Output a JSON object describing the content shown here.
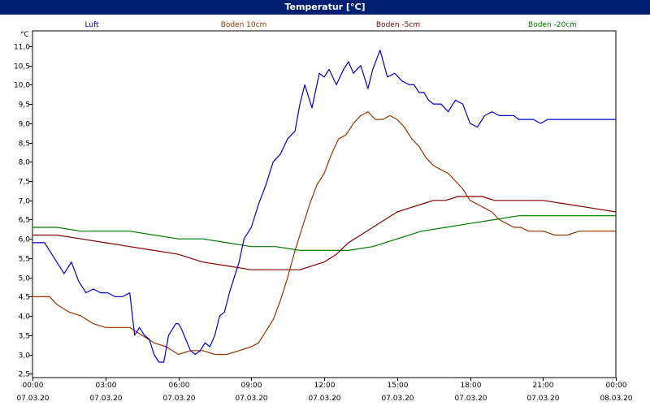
{
  "title": "Temperatur [°C]",
  "chart_data": {
    "type": "line",
    "title": "Temperatur [°C]",
    "ylabel": "°C",
    "xlabel": "",
    "ylim": [
      2.4,
      11.4
    ],
    "xlim": [
      0,
      24
    ],
    "grid": true,
    "legend_position": "top",
    "x_tick_labels": [
      {
        "x": 0,
        "time": "00:00",
        "date": "07.03.20"
      },
      {
        "x": 3,
        "time": "03:00",
        "date": "07.03.20"
      },
      {
        "x": 6,
        "time": "06:00",
        "date": "07.03.20"
      },
      {
        "x": 9,
        "time": "09:00",
        "date": "07.03.20"
      },
      {
        "x": 12,
        "time": "12:00",
        "date": "07.03.20"
      },
      {
        "x": 15,
        "time": "15:00",
        "date": "07.03.20"
      },
      {
        "x": 18,
        "time": "18:00",
        "date": "07.03.20"
      },
      {
        "x": 21,
        "time": "21:00",
        "date": "07.03.20"
      },
      {
        "x": 24,
        "time": "00:00",
        "date": "08.03.20"
      }
    ],
    "y_ticks": [
      "2,5",
      "3,0",
      "3,5",
      "4,0",
      "4,5",
      "5,0",
      "5,5",
      "6,0",
      "6,5",
      "7,0",
      "7,5",
      "8,0",
      "8,5",
      "9,0",
      "9,5",
      "10,0",
      "10,5",
      "11,0"
    ],
    "series": [
      {
        "name": "Luft",
        "color": "#0000cc",
        "x": [
          0,
          0.5,
          0.7,
          1.0,
          1.3,
          1.6,
          1.9,
          2.2,
          2.5,
          2.8,
          3.1,
          3.4,
          3.7,
          4.0,
          4.2,
          4.4,
          4.6,
          4.8,
          5.0,
          5.2,
          5.4,
          5.6,
          5.8,
          5.9,
          6.0,
          6.1,
          6.3,
          6.5,
          6.7,
          6.9,
          7.1,
          7.3,
          7.5,
          7.7,
          7.9,
          8.1,
          8.3,
          8.5,
          8.7,
          9.0,
          9.3,
          9.6,
          9.9,
          10.2,
          10.5,
          10.8,
          11.0,
          11.2,
          11.5,
          11.8,
          12.0,
          12.2,
          12.5,
          12.8,
          13.0,
          13.2,
          13.5,
          13.8,
          14.0,
          14.3,
          14.6,
          14.9,
          15.2,
          15.5,
          15.7,
          15.9,
          16.1,
          16.3,
          16.5,
          16.8,
          17.1,
          17.4,
          17.7,
          18.0,
          18.3,
          18.6,
          18.9,
          19.2,
          19.5,
          19.8,
          20.0,
          20.3,
          20.6,
          20.9,
          21.2,
          21.5,
          21.8,
          22.1,
          22.4,
          22.7,
          23.0,
          23.3,
          23.6,
          24.0
        ],
        "y": [
          5.9,
          5.9,
          5.7,
          5.4,
          5.1,
          5.4,
          4.9,
          4.6,
          4.7,
          4.6,
          4.6,
          4.5,
          4.5,
          4.6,
          3.5,
          3.7,
          3.5,
          3.4,
          3.0,
          2.8,
          2.8,
          3.5,
          3.7,
          3.8,
          3.8,
          3.7,
          3.4,
          3.1,
          3.0,
          3.1,
          3.3,
          3.2,
          3.5,
          4.0,
          4.1,
          4.6,
          5.0,
          5.4,
          6.0,
          6.3,
          6.9,
          7.4,
          8.0,
          8.2,
          8.6,
          8.8,
          9.5,
          10.0,
          9.4,
          10.3,
          10.2,
          10.4,
          10.0,
          10.4,
          10.6,
          10.3,
          10.5,
          9.9,
          10.4,
          10.9,
          10.2,
          10.3,
          10.1,
          10.0,
          10.0,
          9.8,
          9.8,
          9.6,
          9.5,
          9.5,
          9.3,
          9.6,
          9.5,
          9.0,
          8.9,
          9.2,
          9.3,
          9.2,
          9.2,
          9.2,
          9.1,
          9.1,
          9.1,
          9.0,
          9.1,
          9.1,
          9.1,
          9.1,
          9.1,
          9.1,
          9.1,
          9.1,
          9.1,
          9.1
        ]
      },
      {
        "name": "Boden 10cm",
        "color": "#993300",
        "x": [
          0,
          0.7,
          1.0,
          1.5,
          2.0,
          2.5,
          3.0,
          3.5,
          4.0,
          4.5,
          5.0,
          5.5,
          6.0,
          6.5,
          7.0,
          7.5,
          8.0,
          8.5,
          9.0,
          9.3,
          9.6,
          9.9,
          10.2,
          10.5,
          10.8,
          11.1,
          11.4,
          11.7,
          12.0,
          12.3,
          12.6,
          12.9,
          13.2,
          13.5,
          13.8,
          14.1,
          14.4,
          14.7,
          15.0,
          15.3,
          15.6,
          15.9,
          16.2,
          16.5,
          16.8,
          17.1,
          17.4,
          17.7,
          18.0,
          18.3,
          18.6,
          18.9,
          19.2,
          19.5,
          19.8,
          20.1,
          20.4,
          20.7,
          21.0,
          21.5,
          22.0,
          22.5,
          23.0,
          23.5,
          24.0
        ],
        "y": [
          4.5,
          4.5,
          4.3,
          4.1,
          4.0,
          3.8,
          3.7,
          3.7,
          3.7,
          3.5,
          3.3,
          3.2,
          3.0,
          3.1,
          3.1,
          3.0,
          3.0,
          3.1,
          3.2,
          3.3,
          3.6,
          3.9,
          4.4,
          5.0,
          5.7,
          6.3,
          6.9,
          7.4,
          7.7,
          8.2,
          8.6,
          8.7,
          9.0,
          9.2,
          9.3,
          9.1,
          9.1,
          9.2,
          9.1,
          8.9,
          8.6,
          8.4,
          8.1,
          7.9,
          7.8,
          7.7,
          7.5,
          7.3,
          7.0,
          6.9,
          6.8,
          6.7,
          6.5,
          6.4,
          6.3,
          6.3,
          6.2,
          6.2,
          6.2,
          6.1,
          6.1,
          6.2,
          6.2,
          6.2,
          6.2
        ]
      },
      {
        "name": "Boden -5cm",
        "color": "#800000",
        "x": [
          0,
          1.0,
          2.0,
          3.0,
          4.0,
          5.0,
          6.0,
          7.0,
          8.0,
          9.0,
          10.0,
          11.0,
          12.0,
          12.5,
          13.0,
          13.5,
          14.0,
          14.5,
          15.0,
          15.5,
          16.0,
          16.5,
          17.0,
          17.5,
          18.0,
          18.5,
          19.0,
          20.0,
          21.0,
          22.0,
          23.0,
          24.0
        ],
        "y": [
          6.1,
          6.1,
          6.0,
          5.9,
          5.8,
          5.7,
          5.6,
          5.4,
          5.3,
          5.2,
          5.2,
          5.2,
          5.4,
          5.6,
          5.9,
          6.1,
          6.3,
          6.5,
          6.7,
          6.8,
          6.9,
          7.0,
          7.0,
          7.1,
          7.1,
          7.1,
          7.0,
          7.0,
          7.0,
          6.9,
          6.8,
          6.7
        ]
      },
      {
        "name": "Boden -20cm",
        "color": "#007700",
        "x": [
          0,
          1.0,
          2.0,
          3.0,
          4.0,
          5.0,
          6.0,
          7.0,
          8.0,
          9.0,
          10.0,
          11.0,
          12.0,
          13.0,
          14.0,
          15.0,
          16.0,
          17.0,
          18.0,
          19.0,
          20.0,
          21.0,
          22.0,
          23.0,
          24.0
        ],
        "y": [
          6.3,
          6.3,
          6.2,
          6.2,
          6.2,
          6.1,
          6.0,
          6.0,
          5.9,
          5.8,
          5.8,
          5.7,
          5.7,
          5.7,
          5.8,
          6.0,
          6.2,
          6.3,
          6.4,
          6.5,
          6.6,
          6.6,
          6.6,
          6.6,
          6.6
        ]
      }
    ]
  }
}
